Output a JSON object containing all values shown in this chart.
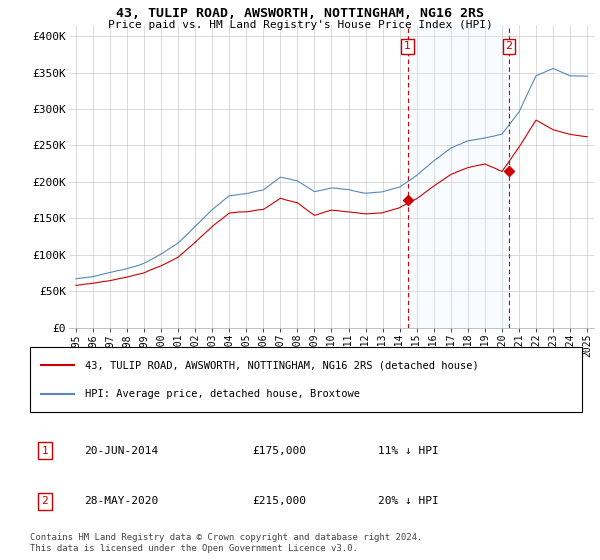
{
  "title": "43, TULIP ROAD, AWSWORTH, NOTTINGHAM, NG16 2RS",
  "subtitle": "Price paid vs. HM Land Registry's House Price Index (HPI)",
  "ylabel_ticks": [
    "£0",
    "£50K",
    "£100K",
    "£150K",
    "£200K",
    "£250K",
    "£300K",
    "£350K",
    "£400K"
  ],
  "ytick_values": [
    0,
    50000,
    100000,
    150000,
    200000,
    250000,
    300000,
    350000,
    400000
  ],
  "ylim": [
    0,
    415000
  ],
  "red_line_label": "43, TULIP ROAD, AWSWORTH, NOTTINGHAM, NG16 2RS (detached house)",
  "blue_line_label": "HPI: Average price, detached house, Broxtowe",
  "transaction1_date": "20-JUN-2014",
  "transaction1_price": "£175,000",
  "transaction1_note": "11% ↓ HPI",
  "transaction2_date": "28-MAY-2020",
  "transaction2_price": "£215,000",
  "transaction2_note": "20% ↓ HPI",
  "footnote": "Contains HM Land Registry data © Crown copyright and database right 2024.\nThis data is licensed under the Open Government Licence v3.0.",
  "red_color": "#cc0000",
  "blue_color": "#5588bb",
  "shade_color": "#ddeeff",
  "vline_color": "#cc0000",
  "dot1_x": 2014.47,
  "dot1_y": 175000,
  "dot2_x": 2020.41,
  "dot2_y": 215000,
  "vline1_x": 2014.47,
  "vline2_x": 2020.41,
  "xlim": [
    1994.6,
    2025.4
  ],
  "box1_label": "1",
  "box2_label": "2"
}
